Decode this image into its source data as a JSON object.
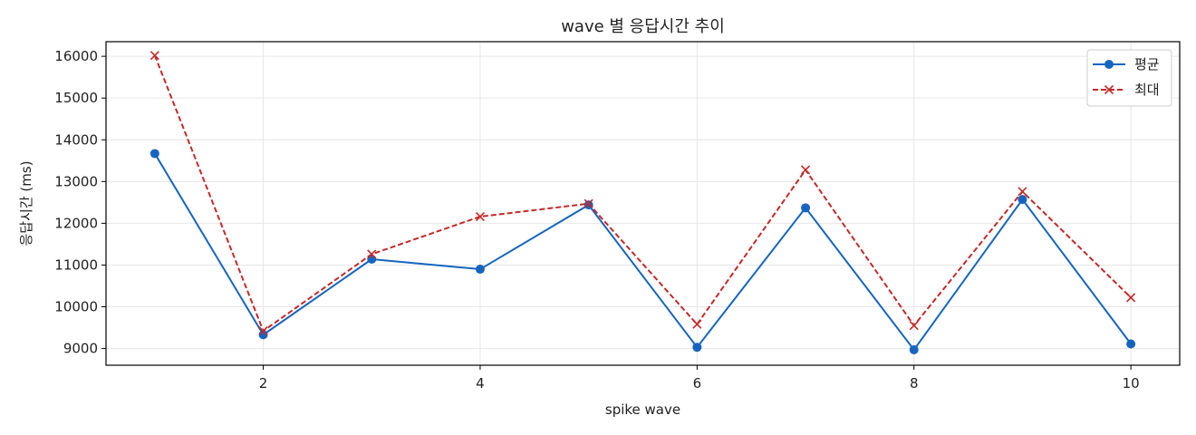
{
  "chart_data": {
    "type": "line",
    "title": "wave 별 응답시간 추이",
    "xlabel": "spike wave",
    "ylabel": "응답시간 (ms)",
    "x": [
      1,
      2,
      3,
      4,
      5,
      6,
      7,
      8,
      9,
      10
    ],
    "xlim": [
      0.55,
      10.45
    ],
    "ylim": [
      8600,
      16350
    ],
    "xticks": [
      2,
      4,
      6,
      8,
      10
    ],
    "yticks": [
      9000,
      10000,
      11000,
      12000,
      13000,
      14000,
      15000,
      16000
    ],
    "grid": true,
    "legend_position": "top-right",
    "series": [
      {
        "name": "평균",
        "values": [
          13670,
          9330,
          11140,
          10900,
          12440,
          9030,
          12370,
          8970,
          12570,
          9110
        ],
        "color": "#1565c0",
        "line_style": "solid",
        "marker": "circle"
      },
      {
        "name": "최대",
        "values": [
          16020,
          9420,
          11260,
          12160,
          12470,
          9580,
          13280,
          9550,
          12760,
          10220
        ],
        "color": "#c62828",
        "line_style": "dashed",
        "marker": "x"
      }
    ]
  }
}
